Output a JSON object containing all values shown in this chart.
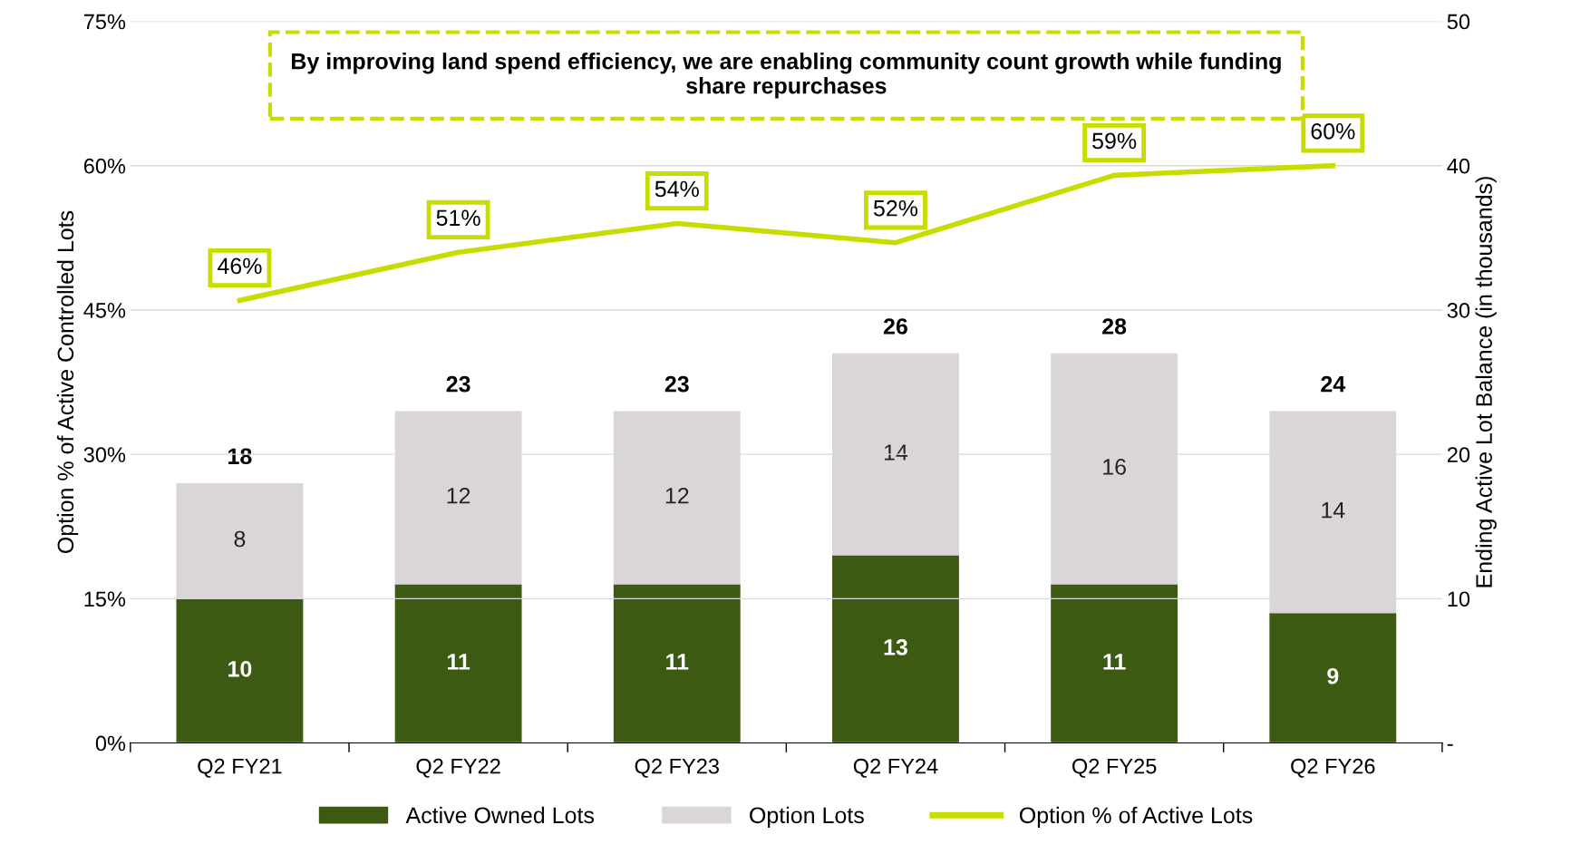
{
  "chart_data": {
    "type": "bar",
    "stacked": true,
    "categories": [
      "Q2 FY21",
      "Q2 FY22",
      "Q2 FY23",
      "Q2 FY24",
      "Q2 FY25",
      "Q2 FY26"
    ],
    "series": [
      {
        "name": "Active Owned Lots",
        "color": "#3d5a12",
        "axis": "y2",
        "values": [
          10,
          11,
          11,
          13,
          11,
          9
        ]
      },
      {
        "name": "Option Lots",
        "color": "#d9d5d9",
        "axis": "y2",
        "values": [
          8,
          12,
          12,
          14,
          16,
          14
        ]
      },
      {
        "name": "Option % of Active Lots",
        "type": "line",
        "color": "#c8dc00",
        "values": [
          46,
          51,
          54,
          52,
          59,
          60
        ],
        "value_labels": [
          "46%",
          "51%",
          "54%",
          "52%",
          "59%",
          "60%"
        ]
      }
    ],
    "totals": [
      "18",
      "23",
      "23",
      "26",
      "28",
      "24"
    ],
    "data_labels": true,
    "ylabel": "Option % of Active Controlled Lots",
    "y2label": "Ending Active Lot Balance (in thousands)",
    "ylim": [
      0,
      75
    ],
    "yticks": [
      {
        "value": 0,
        "label": "0%"
      },
      {
        "value": 15,
        "label": "15%"
      },
      {
        "value": 30,
        "label": "30%"
      },
      {
        "value": 45,
        "label": "45%"
      },
      {
        "value": 60,
        "label": "60%"
      },
      {
        "value": 75,
        "label": "75%"
      }
    ],
    "y2lim": [
      0,
      50
    ],
    "y2ticks": [
      {
        "value": 0,
        "label": "-"
      },
      10,
      20,
      30,
      40,
      50
    ],
    "annotations": [
      "By improving land spend efficiency, we are enabling community count growth while funding share repurchases"
    ],
    "grid": "y",
    "legend": "bottom"
  }
}
